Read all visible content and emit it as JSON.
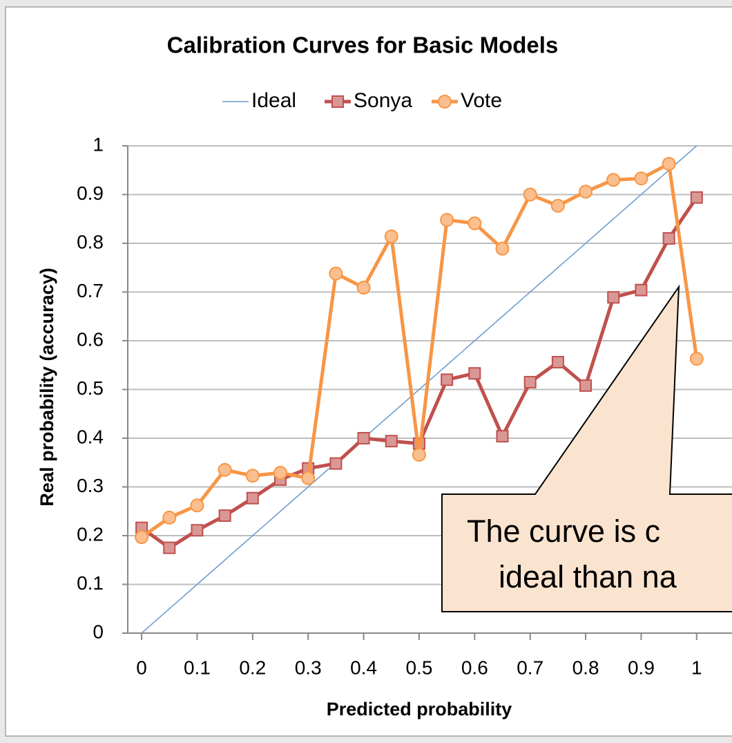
{
  "chart_data": {
    "type": "line",
    "title": "Calibration Curves for Basic Models",
    "xlabel": "Predicted probability",
    "ylabel": "Real probability (accuracy)",
    "x": [
      0,
      0.05,
      0.1,
      0.15,
      0.2,
      0.25,
      0.3,
      0.35,
      0.4,
      0.45,
      0.5,
      0.55,
      0.6,
      0.65,
      0.7,
      0.75,
      0.8,
      0.85,
      0.9,
      0.95,
      1
    ],
    "series": [
      {
        "name": "Ideal",
        "color": "#6d9bcf",
        "marker": "none",
        "values": [
          0,
          0.05,
          0.1,
          0.15,
          0.2,
          0.25,
          0.3,
          0.35,
          0.4,
          0.45,
          0.5,
          0.55,
          0.6,
          0.65,
          0.7,
          0.75,
          0.8,
          0.85,
          0.9,
          0.95,
          1
        ]
      },
      {
        "name": "Sonya",
        "color": "#c0504d",
        "marker": "square",
        "values": [
          0.216,
          0.175,
          0.211,
          0.241,
          0.277,
          0.315,
          0.338,
          0.348,
          0.4,
          0.394,
          0.389,
          0.52,
          0.533,
          0.404,
          0.515,
          0.556,
          0.508,
          0.689,
          0.704,
          0.81,
          0.894
        ]
      },
      {
        "name": "Vote",
        "color": "#f79646",
        "marker": "circle",
        "values": [
          0.197,
          0.237,
          0.262,
          0.335,
          0.323,
          0.329,
          0.318,
          0.738,
          0.709,
          0.814,
          0.366,
          0.848,
          0.841,
          0.789,
          0.9,
          0.877,
          0.906,
          0.93,
          0.933,
          0.963,
          0.563
        ]
      }
    ],
    "xlim": [
      -0.025,
      1.05
    ],
    "ylim": [
      0,
      1
    ],
    "xticks": [
      0,
      0.1,
      0.2,
      0.3,
      0.4,
      0.5,
      0.6,
      0.7,
      0.8,
      0.9,
      1
    ],
    "yticks": [
      0,
      0.1,
      0.2,
      0.3,
      0.4,
      0.5,
      0.6,
      0.7,
      0.8,
      0.9,
      1
    ],
    "grid": true,
    "legend": "top",
    "annotation": [
      "The curve is c",
      "ideal than na"
    ]
  }
}
